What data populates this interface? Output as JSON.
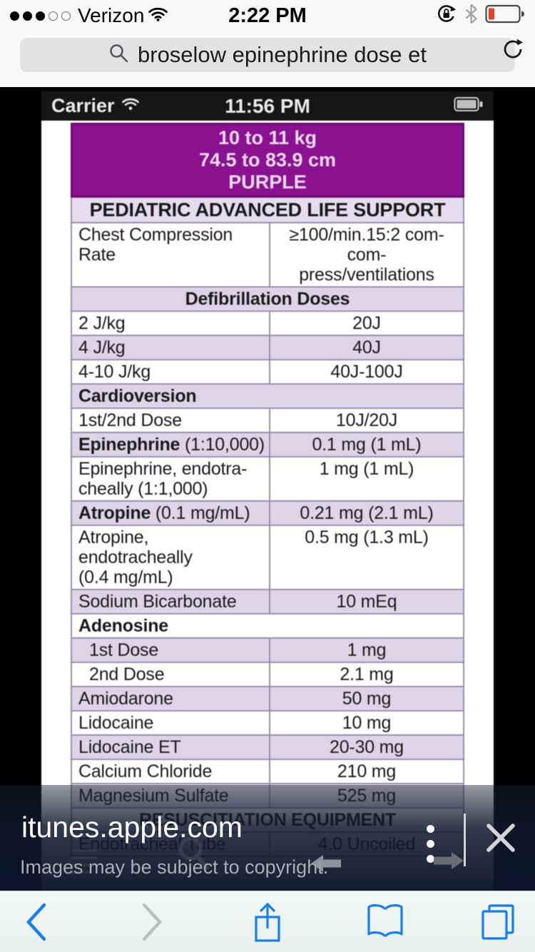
{
  "status_bar": {
    "carrier": "Verizon",
    "time": "2:22 PM",
    "signal": {
      "filled_dots": 3,
      "empty_dots": 2
    },
    "right_icons": [
      "rotation-lock-icon",
      "bluetooth-icon",
      "battery-low-icon"
    ]
  },
  "search_bar": {
    "query": "broselow epinephrine dose et",
    "icons": [
      "search-icon",
      "reload-icon"
    ]
  },
  "viewer": {
    "phone_status_bar": {
      "carrier": "Carrier",
      "time": "11:56 PM",
      "icons": [
        "wifi-icon",
        "battery-icon"
      ]
    },
    "card": {
      "header": {
        "line1": "10 to 11 kg",
        "line2": "74.5 to 83.9 cm",
        "line3": "PURPLE"
      },
      "table_title": "PEDIATRIC ADVANCED LIFE SUPPORT",
      "rows": [
        {
          "label": "Chest Compression Rate",
          "value": "≥100/min.15:2 com-\ncom-\npress/ventilations",
          "bg": "white"
        },
        {
          "type": "section-center",
          "label": "Defibrillation Doses",
          "bg": "lav"
        },
        {
          "label": "2 J/kg",
          "value": "20J",
          "bg": "white"
        },
        {
          "label": "4 J/kg",
          "value": "40J",
          "bg": "lav"
        },
        {
          "label": "4-10 J/kg",
          "value": "40J-100J",
          "bg": "white"
        },
        {
          "type": "section-left",
          "label": "Cardioversion",
          "bg": "lav"
        },
        {
          "label": "1st/2nd Dose",
          "value": "10J/20J",
          "bg": "white"
        },
        {
          "label_bold": "Epinephrine",
          "label_rest": " (1:10,000)",
          "value": "0.1 mg (1 mL)",
          "bg": "lav"
        },
        {
          "label": "Epinephrine, endotra-\ncheally (1:1,000)",
          "value": "1 mg (1 mL)",
          "bg": "white"
        },
        {
          "label_bold": "Atropine",
          "label_rest": " (0.1 mg/mL)",
          "value": "0.21 mg (2.1 mL)",
          "bg": "lav"
        },
        {
          "label": "Atropine, endotracheally\n(0.4 mg/mL)",
          "value": "0.5 mg (1.3 mL)",
          "bg": "white"
        },
        {
          "label": "Sodium Bicarbonate",
          "value": "10 mEq",
          "bg": "lav"
        },
        {
          "type": "section-left",
          "label": "Adenosine",
          "bg": "white"
        },
        {
          "label": "1st Dose",
          "value": "1 mg",
          "bg": "lav",
          "indent": true
        },
        {
          "label": "2nd Dose",
          "value": "2.1 mg",
          "bg": "white",
          "indent": true
        },
        {
          "label": "Amiodarone",
          "value": "50 mg",
          "bg": "lav"
        },
        {
          "label": "Lidocaine",
          "value": "10 mg",
          "bg": "white"
        },
        {
          "label": "Lidocaine ET",
          "value": "20-30 mg",
          "bg": "lav"
        },
        {
          "label": "Calcium Chloride",
          "value": "210 mg",
          "bg": "white"
        },
        {
          "label": "Magnesium Sulfate",
          "value": "525 mg",
          "bg": "lav"
        },
        {
          "type": "section-center",
          "label": "RESUSCITIATION EQUIPMENT",
          "bg": "white"
        },
        {
          "label": "Endotracheal Tube",
          "value": "4.0 Uncoiled",
          "bg": "white"
        }
      ]
    }
  },
  "image_overlay": {
    "site": "itunes.apple.com",
    "copyright": "Images may be subject to copyright.",
    "icons": [
      "menu-list-icon",
      "search-ghost-icon",
      "arrow-left-icon",
      "three-dot-menu-icon",
      "arrow-right-icon",
      "close-icon"
    ]
  },
  "toolbar": {
    "icons": [
      "back-icon",
      "forward-icon",
      "share-icon",
      "bookmarks-icon",
      "tabs-icon"
    ]
  },
  "colors": {
    "purple_header": "#8A1190",
    "purple_header_border": "#6d0c72",
    "lavender_row": "#DCD5E8",
    "table_border": "#9A8CB2",
    "safari_blue": "#157EFB",
    "battery_low_red": "#E8402A"
  }
}
